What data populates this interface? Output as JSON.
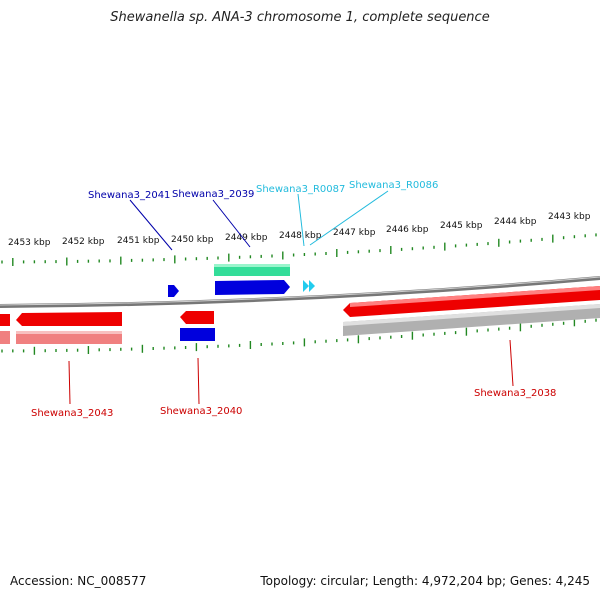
{
  "title": "Shewanella sp. ANA-3 chromosome 1, complete sequence",
  "footer": {
    "accession": "Accession: NC_008577",
    "summary": "Topology: circular; Length: 4,972,204 bp; Genes: 4,245"
  },
  "colors": {
    "forward_cds": "#0000dd",
    "reverse_cds": "#ee0000",
    "rna": "#22ccee",
    "gene_pale_red": "#f08080",
    "gene_green": "#33dd99",
    "gene_gray": "#b0b0b0",
    "backbone": "#888888",
    "tick": "#228822"
  },
  "scale": {
    "unit": "kbp",
    "ticks": [
      {
        "label": "2453 kbp"
      },
      {
        "label": "2452 kbp"
      },
      {
        "label": "2451 kbp"
      },
      {
        "label": "2450 kbp"
      },
      {
        "label": "2449 kbp"
      },
      {
        "label": "2448 kbp"
      },
      {
        "label": "2447 kbp"
      },
      {
        "label": "2446 kbp"
      },
      {
        "label": "2445 kbp"
      },
      {
        "label": "2444 kbp"
      },
      {
        "label": "2443 kbp"
      }
    ]
  },
  "gene_labels": [
    {
      "text": "Shewana3_2041",
      "color": "#0000aa"
    },
    {
      "text": "Shewana3_2039",
      "color": "#0000aa"
    },
    {
      "text": "Shewana3_R0087",
      "color": "#22bbdd"
    },
    {
      "text": "Shewana3_R0086",
      "color": "#22bbdd"
    },
    {
      "text": "Shewana3_2043",
      "color": "#cc0000"
    },
    {
      "text": "Shewana3_2040",
      "color": "#cc0000"
    },
    {
      "text": "Shewana3_2038",
      "color": "#cc0000"
    }
  ]
}
